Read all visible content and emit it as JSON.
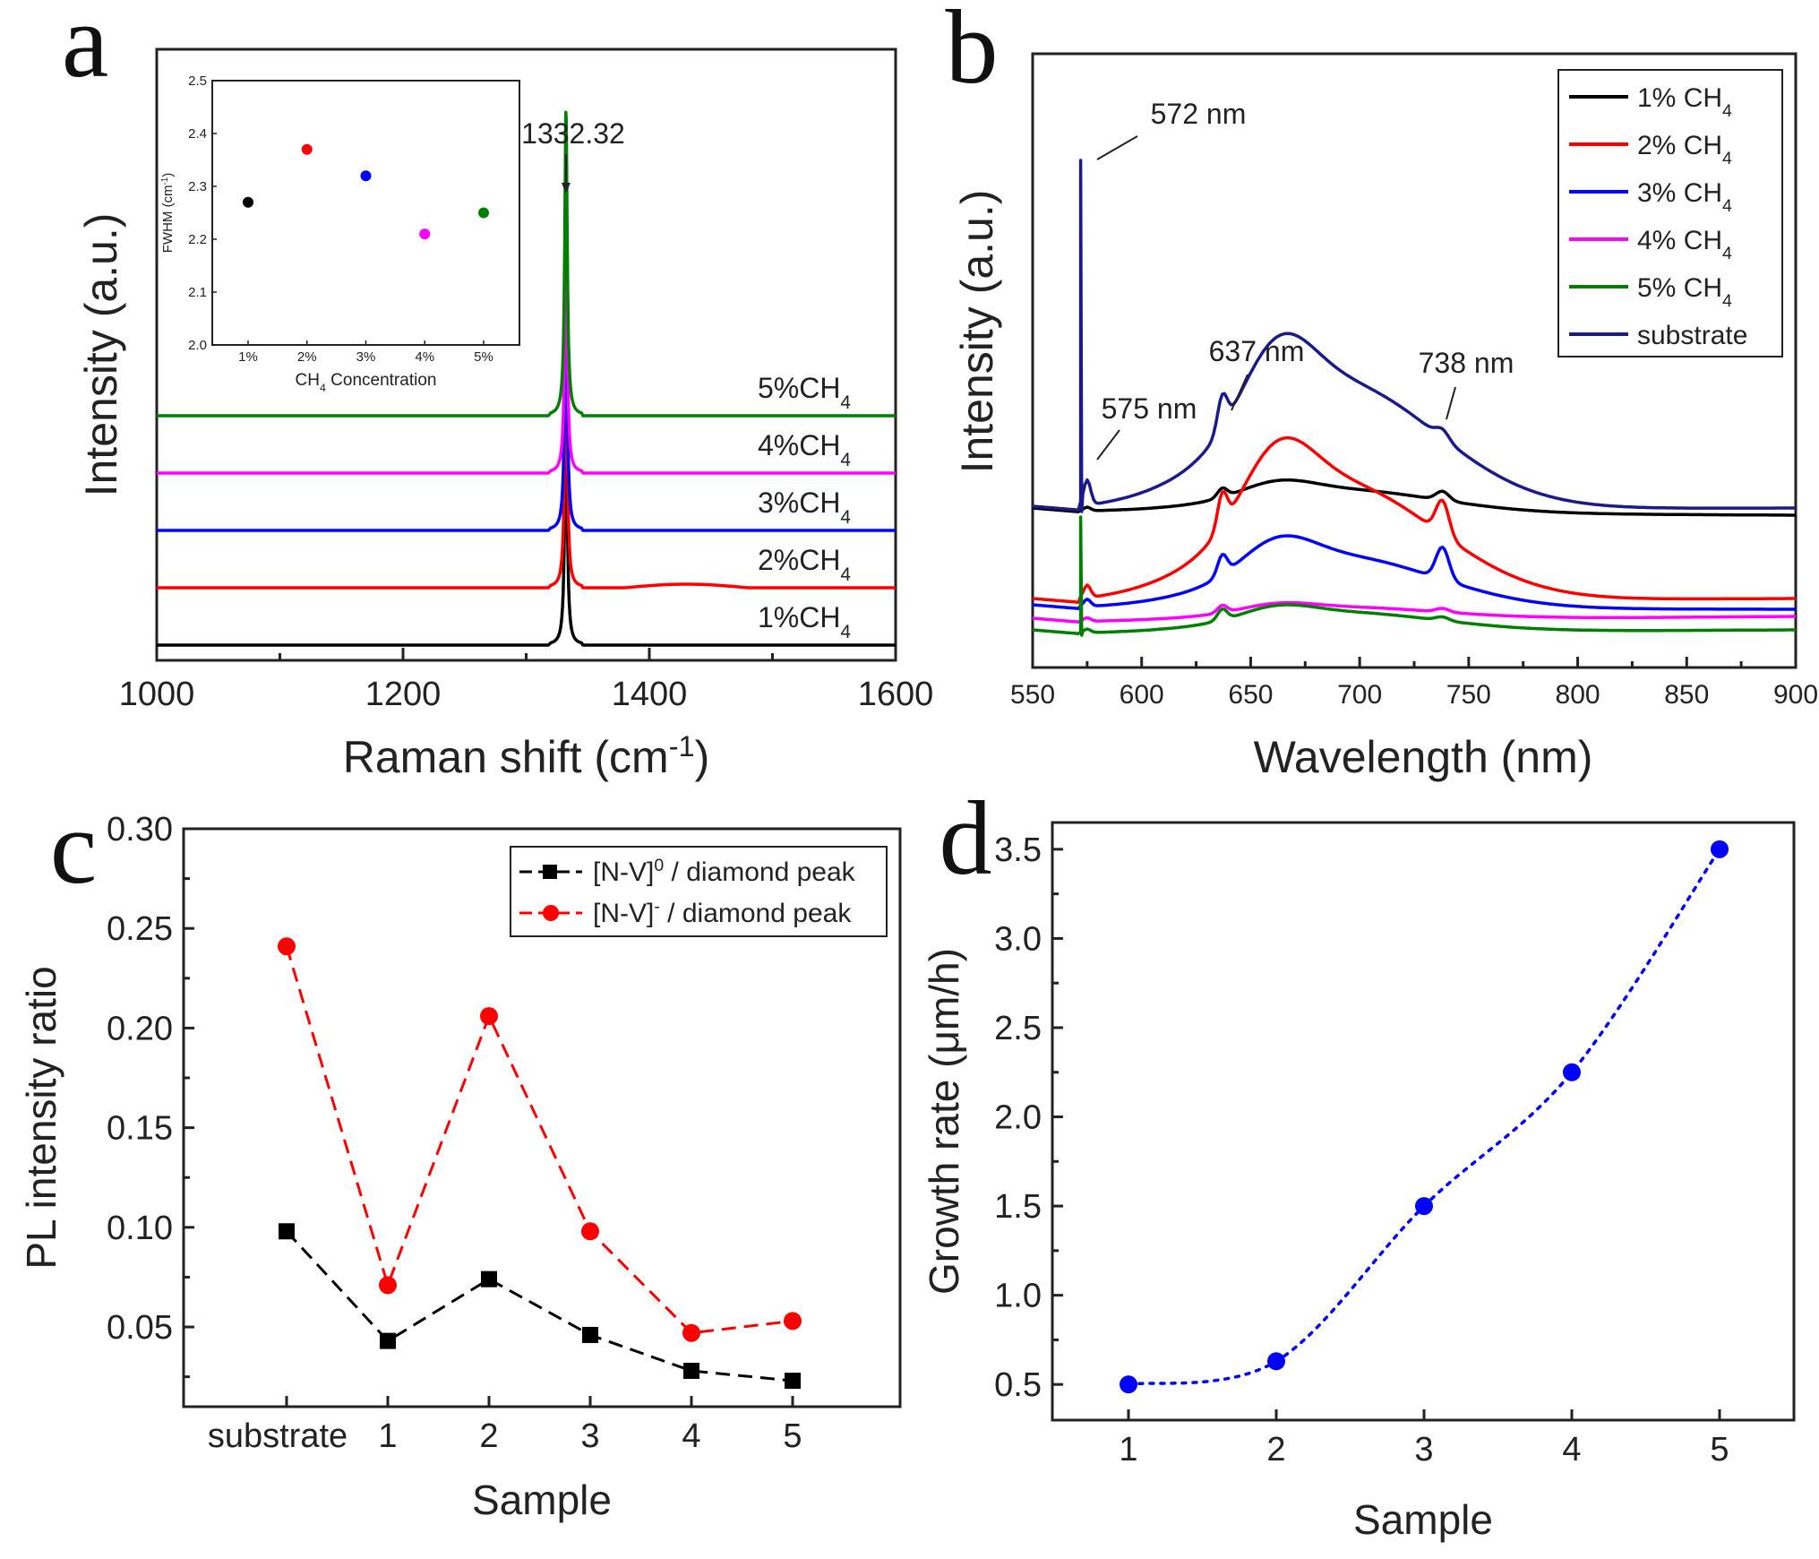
{
  "chart_data": [
    {
      "panel": "a",
      "type": "line",
      "xlabel": "Raman shift (cm",
      "xlabel_sup": "-1",
      "xlabel_close": ")",
      "ylabel": "Intensity (a.u.)",
      "xlim": [
        1000,
        1600
      ],
      "xticks": [
        "1000",
        "1200",
        "1400",
        "1600"
      ],
      "peak_position": 1332.32,
      "peak_annotation": "1332.32",
      "series": [
        {
          "name": "1%CH",
          "sub": "4",
          "color": "#000000",
          "baseline": 0.0,
          "peak_height": 1.55
        },
        {
          "name": "2%CH",
          "sub": "4",
          "color": "#ff0000",
          "baseline": 0.5,
          "peak_height": 1.65
        },
        {
          "name": "3%CH",
          "sub": "4",
          "color": "#0000ff",
          "baseline": 1.0,
          "peak_height": 1.65
        },
        {
          "name": "4%CH",
          "sub": "4",
          "color": "#ff00ff",
          "baseline": 1.5,
          "peak_height": 1.6
        },
        {
          "name": "5%CH",
          "sub": "4",
          "color": "#008000",
          "baseline": 2.0,
          "peak_height": 1.9
        }
      ],
      "inset": {
        "type": "scatter",
        "xlabel": "CH",
        "xlabel_sub": "4",
        "xlabel_rest": " Concentration",
        "ylabel": "FWHM (cm",
        "ylabel_sup": "-1",
        "ylabel_close": ")",
        "categories": [
          "1%",
          "2%",
          "3%",
          "4%",
          "5%"
        ],
        "values": [
          2.27,
          2.37,
          2.32,
          2.21,
          2.25
        ],
        "colors": [
          "#000000",
          "#ff0000",
          "#0000ff",
          "#ff00ff",
          "#008000"
        ],
        "ylim": [
          2.0,
          2.5
        ],
        "yticks": [
          "2.0",
          "2.1",
          "2.2",
          "2.3",
          "2.4",
          "2.5"
        ]
      }
    },
    {
      "panel": "b",
      "type": "line",
      "xlabel": "Wavelength (nm)",
      "ylabel": "Intensity (a.u.)",
      "xlim": [
        550,
        900
      ],
      "xticks": [
        "550",
        "600",
        "650",
        "700",
        "750",
        "800",
        "850",
        "900"
      ],
      "annotations": [
        {
          "text": "572 nm",
          "x": 572
        },
        {
          "text": "575 nm",
          "x": 575
        },
        {
          "text": "637 nm",
          "x": 637
        },
        {
          "text": "738 nm",
          "x": 738
        }
      ],
      "legend_position": "top-right",
      "series": [
        {
          "name": "1% CH",
          "sub": "4",
          "color": "#000000"
        },
        {
          "name": "2% CH",
          "sub": "4",
          "color": "#ff0000"
        },
        {
          "name": "3% CH",
          "sub": "4",
          "color": "#0000ff"
        },
        {
          "name": "4% CH",
          "sub": "4",
          "color": "#ff00ff"
        },
        {
          "name": "5% CH",
          "sub": "4",
          "color": "#008000"
        },
        {
          "name": "substrate",
          "sub": "",
          "color": "#1a1a8c"
        }
      ]
    },
    {
      "panel": "c",
      "type": "line",
      "xlabel": "Sample",
      "ylabel": "PL intensity ratio",
      "categories": [
        "substrate",
        "1",
        "2",
        "3",
        "4",
        "5"
      ],
      "ylim": [
        0.0,
        0.3
      ],
      "yticks": [
        "0.05",
        "0.10",
        "0.15",
        "0.20",
        "0.25",
        "0.30"
      ],
      "legend_position": "top-right",
      "series": [
        {
          "name": "[N-V]",
          "sup": "0",
          "rest": " / diamond peak",
          "color": "#000000",
          "marker": "square",
          "values": [
            0.098,
            0.043,
            0.074,
            0.046,
            0.028,
            0.023
          ]
        },
        {
          "name": "[N-V]",
          "sup": "-",
          "rest": " / diamond peak",
          "color": "#ff0000",
          "marker": "circle",
          "values": [
            0.241,
            0.071,
            0.206,
            0.098,
            0.047,
            0.053
          ]
        }
      ]
    },
    {
      "panel": "d",
      "type": "scatter",
      "xlabel": "Sample",
      "ylabel": "Growth rate (μm/h)",
      "categories": [
        "1",
        "2",
        "3",
        "4",
        "5"
      ],
      "values": [
        0.5,
        0.63,
        1.5,
        2.25,
        3.5
      ],
      "color": "#0000ff",
      "ylim": [
        0.3,
        3.65
      ],
      "yticks": [
        "0.5",
        "1.0",
        "1.5",
        "2.0",
        "2.5",
        "3.0",
        "3.5"
      ]
    }
  ]
}
